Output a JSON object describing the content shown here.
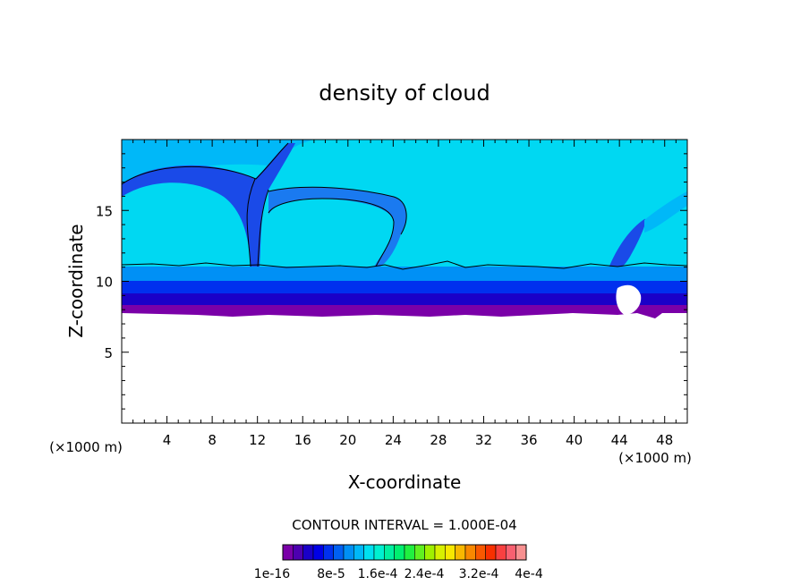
{
  "chart_data": {
    "type": "heatmap",
    "title": "density of cloud",
    "xlabel": "X-coordinate",
    "ylabel": "Z-coordinate",
    "x_unit_left": "(×1000 m)",
    "x_unit_right": "(×1000 m)",
    "xlim": [
      0,
      50
    ],
    "ylim": [
      0,
      20
    ],
    "x_ticks": [
      4,
      8,
      12,
      16,
      20,
      24,
      28,
      32,
      36,
      40,
      44,
      48
    ],
    "y_ticks": [
      5,
      10,
      15
    ],
    "contour_interval_text": "CONTOUR INTERVAL = 1.000E-04",
    "colorbar_labels": [
      "1e-16",
      "8e-5",
      "1.6e-4",
      "2.4e-4",
      "3.2e-4",
      "4e-4"
    ],
    "colorbar_colors": [
      "#7a00a8",
      "#4d00b0",
      "#1a00c8",
      "#0000e6",
      "#0030ee",
      "#0060f2",
      "#0090f5",
      "#00b8f8",
      "#00e0f0",
      "#00f0d0",
      "#00f0a0",
      "#00f070",
      "#20f040",
      "#60f020",
      "#a0f000",
      "#d8f000",
      "#f8e800",
      "#f8b800",
      "#f88800",
      "#f85800",
      "#f83000",
      "#f84040",
      "#f86070",
      "#f89090"
    ],
    "cloud_base_height": 8,
    "cloud_top_height": 20,
    "cloud_top_line_height": 11.2,
    "layers": [
      {
        "name": "upper",
        "z_from": 11.2,
        "z_to": 20,
        "value_class": 8
      },
      {
        "name": "band-3",
        "z_from": 10,
        "z_to": 11.2,
        "value_class": 4
      },
      {
        "name": "band-2",
        "z_from": 9,
        "z_to": 10,
        "value_class": 3
      },
      {
        "name": "band-1",
        "z_from": 8.3,
        "z_to": 9,
        "value_class": 2
      },
      {
        "name": "base",
        "z_from": 7.7,
        "z_to": 8.3,
        "value_class": 0
      }
    ]
  }
}
